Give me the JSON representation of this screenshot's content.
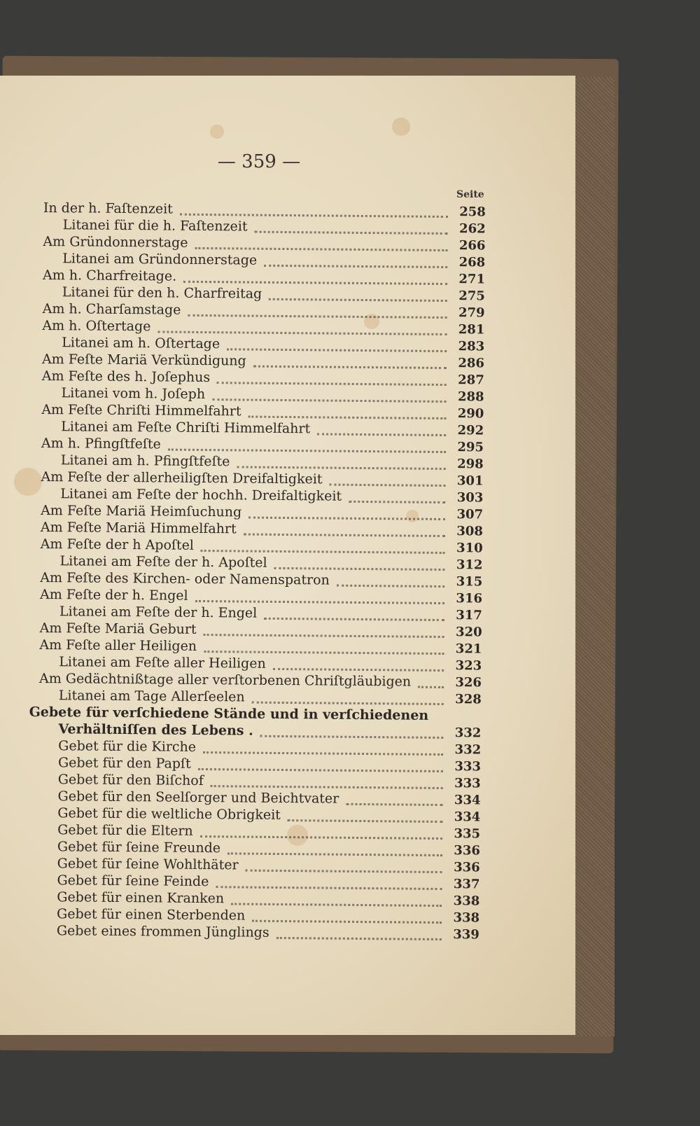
{
  "page_number": "— 359 —",
  "column_header": "Seite",
  "entries": [
    {
      "title": "In der h. Faſtenzeit",
      "page": "258",
      "level": 0
    },
    {
      "title": "Litanei für die h. Faſtenzeit",
      "page": "262",
      "level": 1
    },
    {
      "title": "Am Gründonnerstage",
      "page": "266",
      "level": 0
    },
    {
      "title": "Litanei am Gründonnerstage",
      "page": "268",
      "level": 1
    },
    {
      "title": "Am h. Charfreitage.",
      "page": "271",
      "level": 0
    },
    {
      "title": "Litanei für den h. Charfreitag",
      "page": "275",
      "level": 1
    },
    {
      "title": "Am h. Charſamstage",
      "page": "279",
      "level": 0
    },
    {
      "title": "Am h. Oſtertage",
      "page": "281",
      "level": 0
    },
    {
      "title": "Litanei am h. Oſtertage",
      "page": "283",
      "level": 1
    },
    {
      "title": "Am Feſte Mariä Verkündigung",
      "page": "286",
      "level": 0
    },
    {
      "title": "Am Feſte des h. Joſephus",
      "page": "287",
      "level": 0
    },
    {
      "title": "Litanei vom h. Joſeph",
      "page": "288",
      "level": 1
    },
    {
      "title": "Am Feſte Chriſti Himmelfahrt",
      "page": "290",
      "level": 0
    },
    {
      "title": "Litanei am Feſte Chriſti Himmelfahrt",
      "page": "292",
      "level": 1
    },
    {
      "title": "Am h. Pfingſtfeſte",
      "page": "295",
      "level": 0
    },
    {
      "title": "Litanei am h. Pfingſtfeſte",
      "page": "298",
      "level": 1
    },
    {
      "title": "Am Feſte der allerheiligſten Dreifaltigkeit",
      "page": "301",
      "level": 0
    },
    {
      "title": "Litanei am Feſte der hochh. Dreifaltigkeit",
      "page": "303",
      "level": 1
    },
    {
      "title": "Am Feſte Mariä Heimſuchung",
      "page": "307",
      "level": 0
    },
    {
      "title": "Am Feſte Mariä Himmelfahrt",
      "page": "308",
      "level": 0
    },
    {
      "title": "Am Feſte der h Apoſtel",
      "page": "310",
      "level": 0
    },
    {
      "title": "Litanei am Feſte der h. Apoſtel",
      "page": "312",
      "level": 1
    },
    {
      "title": "Am Feſte des Kirchen- oder Namenspatron",
      "page": "315",
      "level": 0
    },
    {
      "title": "Am Feſte der h. Engel",
      "page": "316",
      "level": 0
    },
    {
      "title": "Litanei am Feſte der h. Engel",
      "page": "317",
      "level": 1
    },
    {
      "title": "Am Feſte Mariä Geburt",
      "page": "320",
      "level": 0
    },
    {
      "title": "Am Feſte aller Heiligen",
      "page": "321",
      "level": 0
    },
    {
      "title": "Litanei am Feſte aller Heiligen",
      "page": "323",
      "level": 1
    },
    {
      "title": "Am Gedächtnißtage aller verſtorbenen Chriſtgläubigen",
      "page": "326",
      "level": 0
    },
    {
      "title": "Litanei am Tage Allerſeelen",
      "page": "328",
      "level": 1
    },
    {
      "title": "Gebete für verſchiedene Stände und in verſchiedenen",
      "page": "",
      "level": 0,
      "bold": true,
      "heading": true
    },
    {
      "title": "Verhältniſſen des Lebens .",
      "page": "332",
      "level": 1,
      "bold": true
    },
    {
      "title": "Gebet für die Kirche",
      "page": "332",
      "level": 1
    },
    {
      "title": "Gebet für den Papſt",
      "page": "333",
      "level": 1
    },
    {
      "title": "Gebet für den Biſchof",
      "page": "333",
      "level": 1
    },
    {
      "title": "Gebet für den Seelſorger und Beichtvater",
      "page": "334",
      "level": 1
    },
    {
      "title": "Gebet für die weltliche Obrigkeit",
      "page": "334",
      "level": 1
    },
    {
      "title": "Gebet für die Eltern",
      "page": "335",
      "level": 1
    },
    {
      "title": "Gebet für ſeine Freunde",
      "page": "336",
      "level": 1
    },
    {
      "title": "Gebet für ſeine Wohlthäter",
      "page": "336",
      "level": 1
    },
    {
      "title": "Gebet für ſeine Feinde",
      "page": "337",
      "level": 1
    },
    {
      "title": "Gebet für einen Kranken",
      "page": "338",
      "level": 1
    },
    {
      "title": "Gebet für einen Sterbenden",
      "page": "338",
      "level": 1
    },
    {
      "title": "Gebet eines frommen Jünglings",
      "page": "339",
      "level": 1
    }
  ]
}
